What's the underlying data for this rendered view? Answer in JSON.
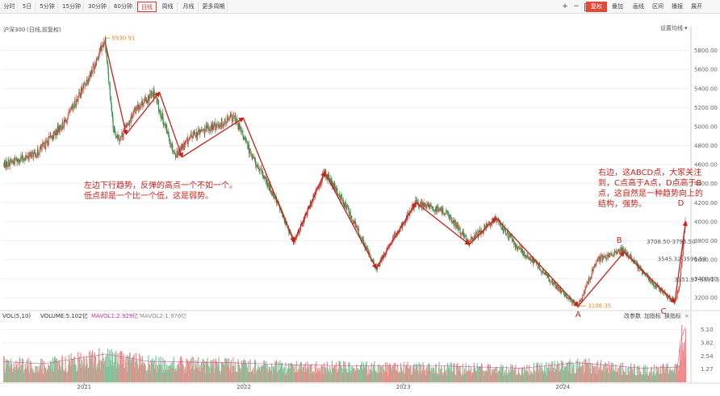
{
  "toolbar": {
    "periods": [
      "分时",
      "5日",
      "5分钟",
      "15分钟",
      "30分钟",
      "60分钟",
      "日线",
      "周线",
      "月线",
      "更多周期"
    ],
    "active_period": "日线",
    "zoom_in": "+",
    "zoom_out": "−",
    "grid_icon": "grid-icon",
    "fq_label": "复权",
    "indicator_label": "叠加",
    "draw_label": "画线",
    "stats_label": "区间",
    "replay_label": "播报",
    "expand_label": "展开"
  },
  "colors": {
    "up": "#e03c3c",
    "down": "#1f9a4a",
    "annotation": "#c8201a",
    "mavol1": "#cc3399",
    "accent": "#e04a3a"
  },
  "chart_data": {
    "type": "candlestick",
    "title": "沪深300",
    "subtitle": "(日线,前复权)",
    "settings_label": "设置均线",
    "ylim": [
      3100,
      6000
    ],
    "yticks": [
      3200,
      3400,
      3600,
      3800,
      4000,
      4200,
      4400,
      4600,
      4800,
      5000,
      5200,
      5400,
      5600,
      5800
    ],
    "x_labels": [
      "2021",
      "2022",
      "2023",
      "2024"
    ],
    "price_path": [
      [
        "2020-07-01",
        4600
      ],
      [
        "2020-09-15",
        4720
      ],
      [
        "2020-11-20",
        5050
      ],
      [
        "2021-01-20",
        5600
      ],
      [
        "2021-02-18",
        5930.91
      ],
      [
        "2021-03-09",
        4950
      ],
      [
        "2021-03-25",
        4880
      ],
      [
        "2021-05-01",
        5200
      ],
      [
        "2021-06-10",
        5350
      ],
      [
        "2021-07-28",
        4700
      ],
      [
        "2021-09-10",
        4920
      ],
      [
        "2021-10-20",
        4990
      ],
      [
        "2021-12-10",
        5100
      ],
      [
        "2022-01-30",
        4600
      ],
      [
        "2022-03-15",
        4250
      ],
      [
        "2022-04-26",
        3780
      ],
      [
        "2022-07-05",
        4520
      ],
      [
        "2022-08-25",
        4150
      ],
      [
        "2022-10-31",
        3500
      ],
      [
        "2022-12-20",
        3900
      ],
      [
        "2023-01-30",
        4200
      ],
      [
        "2023-04-10",
        4100
      ],
      [
        "2023-05-30",
        3780
      ],
      [
        "2023-08-01",
        4040
      ],
      [
        "2023-09-20",
        3720
      ],
      [
        "2023-11-01",
        3560
      ],
      [
        "2023-12-20",
        3300
      ],
      [
        "2024-02-05",
        3108.35
      ],
      [
        "2024-03-20",
        3600
      ],
      [
        "2024-05-20",
        3708.5
      ],
      [
        "2024-07-05",
        3450
      ],
      [
        "2024-09-13",
        3150
      ],
      [
        "2024-09-24",
        3300
      ],
      [
        "2024-10-08",
        4050
      ]
    ],
    "trend_zigzag": [
      [
        "2021-02-18",
        5880
      ],
      [
        "2021-04-07",
        4920
      ],
      [
        "2021-06-22",
        5360
      ],
      [
        "2021-08-13",
        4680
      ],
      [
        "2021-12-31",
        5090
      ],
      [
        "2022-04-26",
        3790
      ],
      [
        "2022-07-05",
        4520
      ],
      [
        "2022-10-31",
        3510
      ],
      [
        "2023-01-30",
        4200
      ],
      [
        "2023-06-01",
        3760
      ],
      [
        "2023-08-01",
        4040
      ],
      [
        "2024-02-05",
        3110
      ],
      [
        "2024-05-20",
        3680
      ],
      [
        "2024-09-13",
        3150
      ],
      [
        "2024-10-08",
        4000
      ]
    ],
    "price_labels": [
      {
        "text": "5930.91",
        "date": "2021-02-18",
        "value": 5930.91
      },
      {
        "text": "3108.35",
        "date": "2024-02-05",
        "value": 3108.35
      },
      {
        "text": "3708.50-3796.50",
        "date": "2024-05-20",
        "value": 3708.5
      },
      {
        "text": "3545.32-3596.58",
        "date": "2024-06-25",
        "value": 3570
      },
      {
        "text": "3351.97-3391.58",
        "date": "2024-08-10",
        "value": 3370
      }
    ],
    "points": [
      {
        "label": "A",
        "date": "2024-02-05",
        "value": 3108.35
      },
      {
        "label": "B",
        "date": "2024-05-20",
        "value": 3708.5
      },
      {
        "label": "C",
        "date": "2024-09-13",
        "value": 3150
      },
      {
        "label": "D",
        "date": "2024-10-08",
        "value": 4050
      }
    ],
    "annotations": [
      {
        "lines": [
          "左边下行趋势，反弹的高点一个不如一个。",
          "低点却是一个比一个低，这是弱势。"
        ]
      },
      {
        "lines": [
          "右边，这ABCD点，大家关注",
          "到，C点高于A点，D点高于B",
          "点，这自然是一种趋势向上的",
          "结构，强势。"
        ]
      }
    ],
    "volume": {
      "legend": [
        "VOL(5,10)",
        "VOLUME:5.102亿",
        "MAVOL1:2.929亿",
        "MAVOL2:1.976亿"
      ],
      "buttons": [
        "改参数",
        "加指标",
        "换指标"
      ],
      "ylim": [
        0,
        5.6
      ],
      "yticks": [
        1.27,
        2.54,
        3.82,
        5.1
      ],
      "baseline_path": [
        [
          "2020-07-01",
          1.9
        ],
        [
          "2020-10-01",
          1.7
        ],
        [
          "2021-02-18",
          2.6
        ],
        [
          "2021-06-01",
          1.9
        ],
        [
          "2021-12-01",
          1.8
        ],
        [
          "2022-04-26",
          1.6
        ],
        [
          "2022-10-31",
          1.5
        ],
        [
          "2023-04-01",
          1.5
        ],
        [
          "2023-10-01",
          1.3
        ],
        [
          "2024-02-05",
          1.8
        ],
        [
          "2024-07-01",
          1.3
        ],
        [
          "2024-09-20",
          1.4
        ],
        [
          "2024-09-26",
          3.8
        ],
        [
          "2024-10-08",
          5.1
        ]
      ]
    }
  }
}
